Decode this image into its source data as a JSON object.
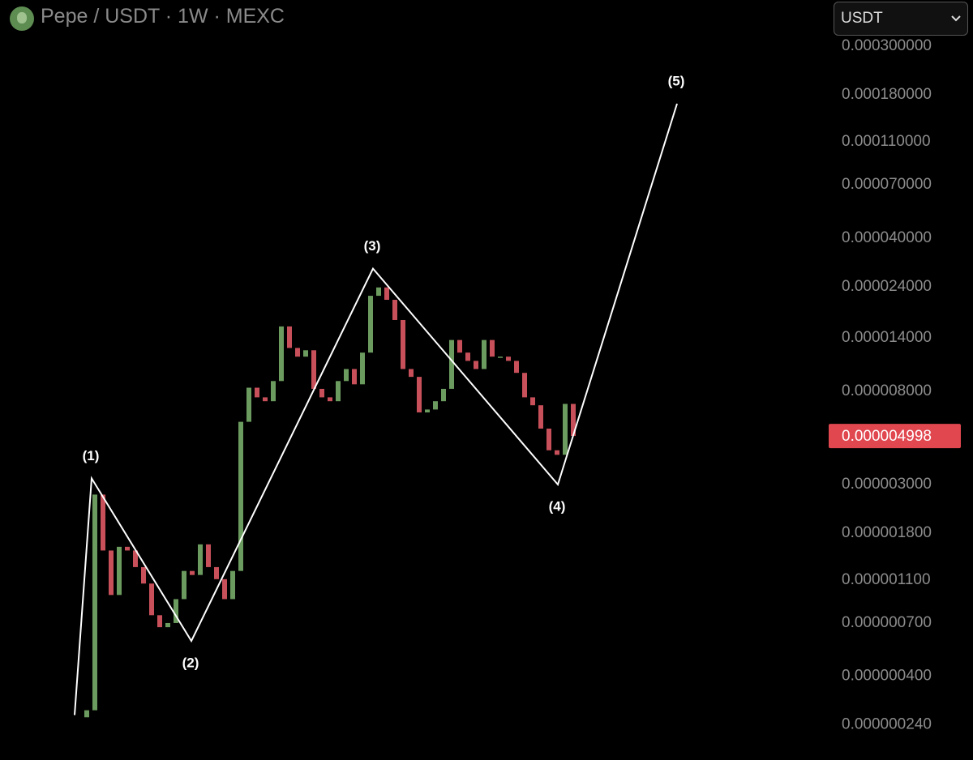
{
  "currency_select": "USDT",
  "chart_data": {
    "type": "candlestick",
    "title": "Pepe / USDT · 1W · MEXC",
    "open": [
      2.6e-07,
      2.8e-07,
      2.7e-06,
      1.5e-06,
      9.4e-07,
      1.56e-06,
      1.5e-06,
      1.26e-06,
      1.06e-06,
      7.6e-07,
      6.7e-07,
      7e-07,
      9e-07,
      1.21e-06,
      1.16e-06,
      1.6e-06,
      1.26e-06,
      1.11e-06,
      9e-07,
      1.21e-06,
      5.8e-06,
      8.3e-06,
      7.5e-06,
      7.2e-06,
      8.9e-06,
      1.58e-05,
      1.26e-05,
      1.15e-05,
      1.23e-05,
      8.2e-06,
      7.5e-06,
      7.2e-06,
      8.9e-06,
      1.01e-05,
      8.6e-06,
      1.2e-05,
      2.18e-05,
      2.38e-05,
      2.09e-05,
      1.69e-05,
      1.01e-05,
      9.3e-06,
      6.4e-06,
      6.6e-06,
      7.2e-06,
      8.2e-06,
      1.37e-05,
      1.2e-05,
      1.1e-05,
      1.01e-05,
      1.37e-05,
      1.15e-05,
      1.15e-05,
      1.1e-05,
      9.7e-06,
      7.5e-06,
      6.9e-06,
      5.4e-06,
      4.3e-06,
      4.1e-06,
      7e-06
    ],
    "close": [
      2.8e-07,
      2.7e-06,
      1.5e-06,
      9.4e-07,
      1.56e-06,
      1.5e-06,
      1.26e-06,
      1.06e-06,
      7.6e-07,
      6.7e-07,
      7e-07,
      9e-07,
      1.21e-06,
      1.16e-06,
      1.6e-06,
      1.26e-06,
      1.11e-06,
      9e-07,
      1.21e-06,
      5.8e-06,
      8.3e-06,
      7.5e-06,
      7.2e-06,
      8.9e-06,
      1.58e-05,
      1.26e-05,
      1.15e-05,
      1.23e-05,
      8.2e-06,
      7.5e-06,
      7.2e-06,
      8.9e-06,
      1.01e-05,
      8.6e-06,
      1.2e-05,
      2.18e-05,
      2.38e-05,
      2.09e-05,
      1.69e-05,
      1.01e-05,
      9.3e-06,
      6.4e-06,
      6.6e-06,
      7.2e-06,
      8.2e-06,
      1.37e-05,
      1.2e-05,
      1.1e-05,
      1.01e-05,
      1.37e-05,
      1.15e-05,
      1.15e-05,
      1.1e-05,
      9.7e-06,
      7.5e-06,
      6.9e-06,
      5.4e-06,
      4.3e-06,
      4.1e-06,
      7e-06,
      4.998e-06
    ],
    "up_color": "#6b9b5e",
    "down_color": "#c8505a",
    "xlim": [
      -10.7,
      91.1
    ],
    "ylim": [
      1.66e-07,
      0.00035
    ],
    "log_scale": true,
    "grid": false,
    "yticks": [
      {
        "value": 0.0003,
        "label": "0.000300000"
      },
      {
        "value": 0.00018,
        "label": "0.000180000"
      },
      {
        "value": 0.00011,
        "label": "0.000110000"
      },
      {
        "value": 7e-05,
        "label": "0.000070000"
      },
      {
        "value": 4e-05,
        "label": "0.000040000"
      },
      {
        "value": 2.4e-05,
        "label": "0.000024000"
      },
      {
        "value": 1.4e-05,
        "label": "0.000014000"
      },
      {
        "value": 8e-06,
        "label": "0.000008000"
      },
      {
        "value": 3e-06,
        "label": "0.000003000"
      },
      {
        "value": 1.8e-06,
        "label": "0.000001800"
      },
      {
        "value": 1.1e-06,
        "label": "0.000001100"
      },
      {
        "value": 7e-07,
        "label": "0.000000700"
      },
      {
        "value": 4e-07,
        "label": "0.000000400"
      },
      {
        "value": 2.4e-07,
        "label": "0.000000240"
      }
    ],
    "last_price": {
      "value": 4.998e-06,
      "label": "0.000004998",
      "color": "#e0474f"
    },
    "waves": {
      "color": "#ffffff",
      "x": [
        -1.5,
        0.6,
        12.9,
        35.3,
        58.1,
        72.8
      ],
      "values": [
        2.66e-07,
        3.2e-06,
        5.8e-07,
        2.9e-05,
        3e-06,
        0.000164
      ],
      "labels": [
        null,
        "(1)",
        "(2)",
        "(3)",
        "(4)",
        "(5)"
      ]
    }
  }
}
